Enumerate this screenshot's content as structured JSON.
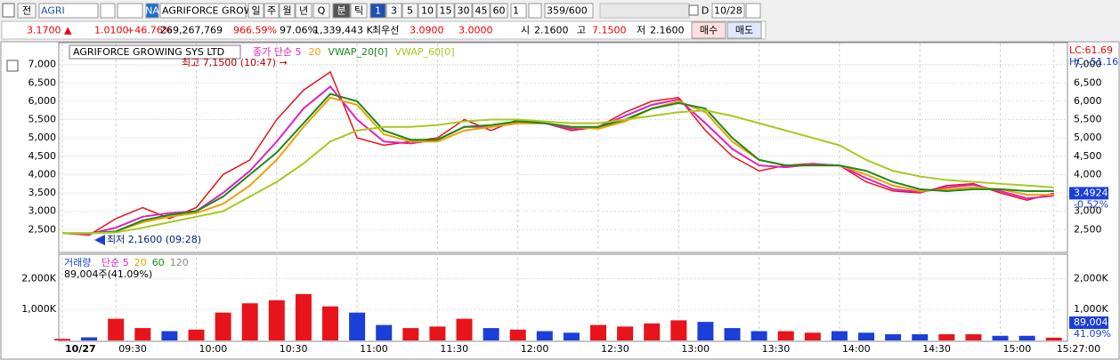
{
  "toolbar": {
    "items": [
      "전",
      "AGRI",
      "NA",
      "AGRIFORCE GROWI",
      "일",
      "주",
      "월",
      "년",
      "Q",
      "분",
      "틱",
      "1",
      "3",
      "5",
      "10",
      "15",
      "30",
      "45",
      "60",
      "1",
      "359/600",
      "D",
      "10/28"
    ]
  },
  "info_bar": {
    "items": [
      "3.1700 ▲",
      "1.0100",
      "+46.76%",
      "269,267,769",
      "966.59%",
      "97.06%",
      "1,339,443 K",
      "최우선",
      "3.0900",
      "3.0000",
      "시",
      "2.1600",
      "고",
      "7.1500",
      "저",
      "2.1600",
      "매수",
      "매도"
    ]
  },
  "chart_data": [
    {
      "type": "line",
      "title": "AGRIFORCE GROWING SYS LTD",
      "series": [
        {
          "color": "#e8141b",
          "values": [
            2400,
            2350,
            2800,
            3100,
            2800,
            3100,
            4000,
            4400,
            5500,
            6300,
            6800,
            5000,
            4800,
            4900,
            5000,
            5500,
            5200,
            5500,
            5400,
            5200,
            5300,
            5700,
            6000,
            6100,
            5200,
            4500,
            4100,
            4250,
            4300,
            4250,
            3800,
            3550,
            3500,
            3700,
            3750,
            3500,
            3300,
            3490
          ]
        },
        {
          "name": "종가 단순 5",
          "color": "#e020c0",
          "values": [
            2400,
            2380,
            2550,
            2850,
            2950,
            3000,
            3500,
            4100,
            4900,
            5800,
            6400,
            5500,
            4900,
            4850,
            4950,
            5300,
            5300,
            5400,
            5400,
            5250,
            5300,
            5600,
            5900,
            6050,
            5400,
            4700,
            4250,
            4200,
            4280,
            4250,
            3900,
            3600,
            3520,
            3650,
            3720,
            3550,
            3350,
            3420
          ]
        },
        {
          "name": "20",
          "color": "#f0a000",
          "values": [
            2400,
            2400,
            2450,
            2700,
            2850,
            2950,
            3200,
            3700,
            4400,
            5300,
            6100,
            5900,
            5100,
            4900,
            4900,
            5200,
            5300,
            5400,
            5400,
            5300,
            5250,
            5450,
            5800,
            6000,
            5700,
            4900,
            4400,
            4250,
            4250,
            4250,
            4000,
            3700,
            3550,
            3600,
            3650,
            3600,
            3450,
            3450
          ]
        },
        {
          "name": "VWAP_20[0]",
          "color": "#1a8a1a",
          "values": [
            2400,
            2400,
            2450,
            2750,
            2900,
            3000,
            3400,
            4000,
            4600,
            5400,
            6200,
            6000,
            5200,
            4950,
            4950,
            5300,
            5350,
            5450,
            5400,
            5300,
            5300,
            5500,
            5800,
            5950,
            5800,
            5000,
            4400,
            4250,
            4250,
            4250,
            4100,
            3800,
            3600,
            3550,
            3600,
            3600,
            3550,
            3550
          ]
        },
        {
          "name": "VWAP_60[0]",
          "color": "#a8c820",
          "values": [
            2400,
            2400,
            2420,
            2550,
            2700,
            2850,
            3000,
            3400,
            3800,
            4300,
            4900,
            5200,
            5300,
            5300,
            5350,
            5450,
            5500,
            5500,
            5450,
            5400,
            5400,
            5500,
            5600,
            5700,
            5750,
            5600,
            5400,
            5200,
            5000,
            4800,
            4400,
            4100,
            3950,
            3850,
            3800,
            3750,
            3700,
            3650
          ]
        }
      ],
      "ylim": [
        1900,
        7500
      ],
      "yticks": [
        {
          "value": 2500,
          "label": "2,500"
        },
        {
          "value": 3000,
          "label": "3,000"
        },
        {
          "value": 3500,
          "label": "3,500"
        },
        {
          "value": 4000,
          "label": "4,000"
        },
        {
          "value": 4500,
          "label": "4,500"
        },
        {
          "value": 5000,
          "label": "5,000"
        },
        {
          "value": 5500,
          "label": "5,500"
        },
        {
          "value": 6000,
          "label": "6,000"
        },
        {
          "value": 6500,
          "label": "6,500"
        },
        {
          "value": 7000,
          "label": "7,000"
        }
      ],
      "grid": true,
      "annotations": [
        "최고 7,1500 (10:47) →",
        "최저 2,1600 (09:28)"
      ],
      "right_labels": [
        "LC:61.69",
        "HC:-51.16",
        "3.4924",
        "-0.52%"
      ]
    },
    {
      "type": "bar",
      "title": "거래량",
      "categories": [
        "10/27",
        null,
        "09:30",
        null,
        null,
        "10:00",
        null,
        null,
        "10:30",
        null,
        null,
        "11:00",
        null,
        null,
        "11:30",
        null,
        null,
        "12:00",
        null,
        null,
        "12:30",
        null,
        null,
        "13:00",
        null,
        null,
        "13:30",
        null,
        null,
        "14:00",
        null,
        null,
        "14:30",
        null,
        null,
        "15:00",
        null,
        "15:27:00"
      ],
      "values": [
        50000,
        100000,
        700000,
        400000,
        300000,
        350000,
        900000,
        1200000,
        1300000,
        1500000,
        1100000,
        900000,
        500000,
        400000,
        450000,
        700000,
        400000,
        350000,
        300000,
        250000,
        500000,
        450000,
        550000,
        650000,
        600000,
        400000,
        300000,
        300000,
        250000,
        300000,
        250000,
        200000,
        200000,
        200000,
        200000,
        150000,
        150000,
        89004
      ],
      "up_color": "#e8141b",
      "down_color": "#1b3fd8",
      "ylim": [
        0,
        2700000
      ],
      "yticks": [
        {
          "value": 1000000,
          "label": "1,000K"
        },
        {
          "value": 2000000,
          "label": "2,000K"
        }
      ],
      "grid": true,
      "legend": [
        "단순 5",
        "20",
        "60",
        "120"
      ],
      "note": "89,004주(41.09%)",
      "right_labels": [
        "89,004",
        "41.09%"
      ]
    }
  ]
}
